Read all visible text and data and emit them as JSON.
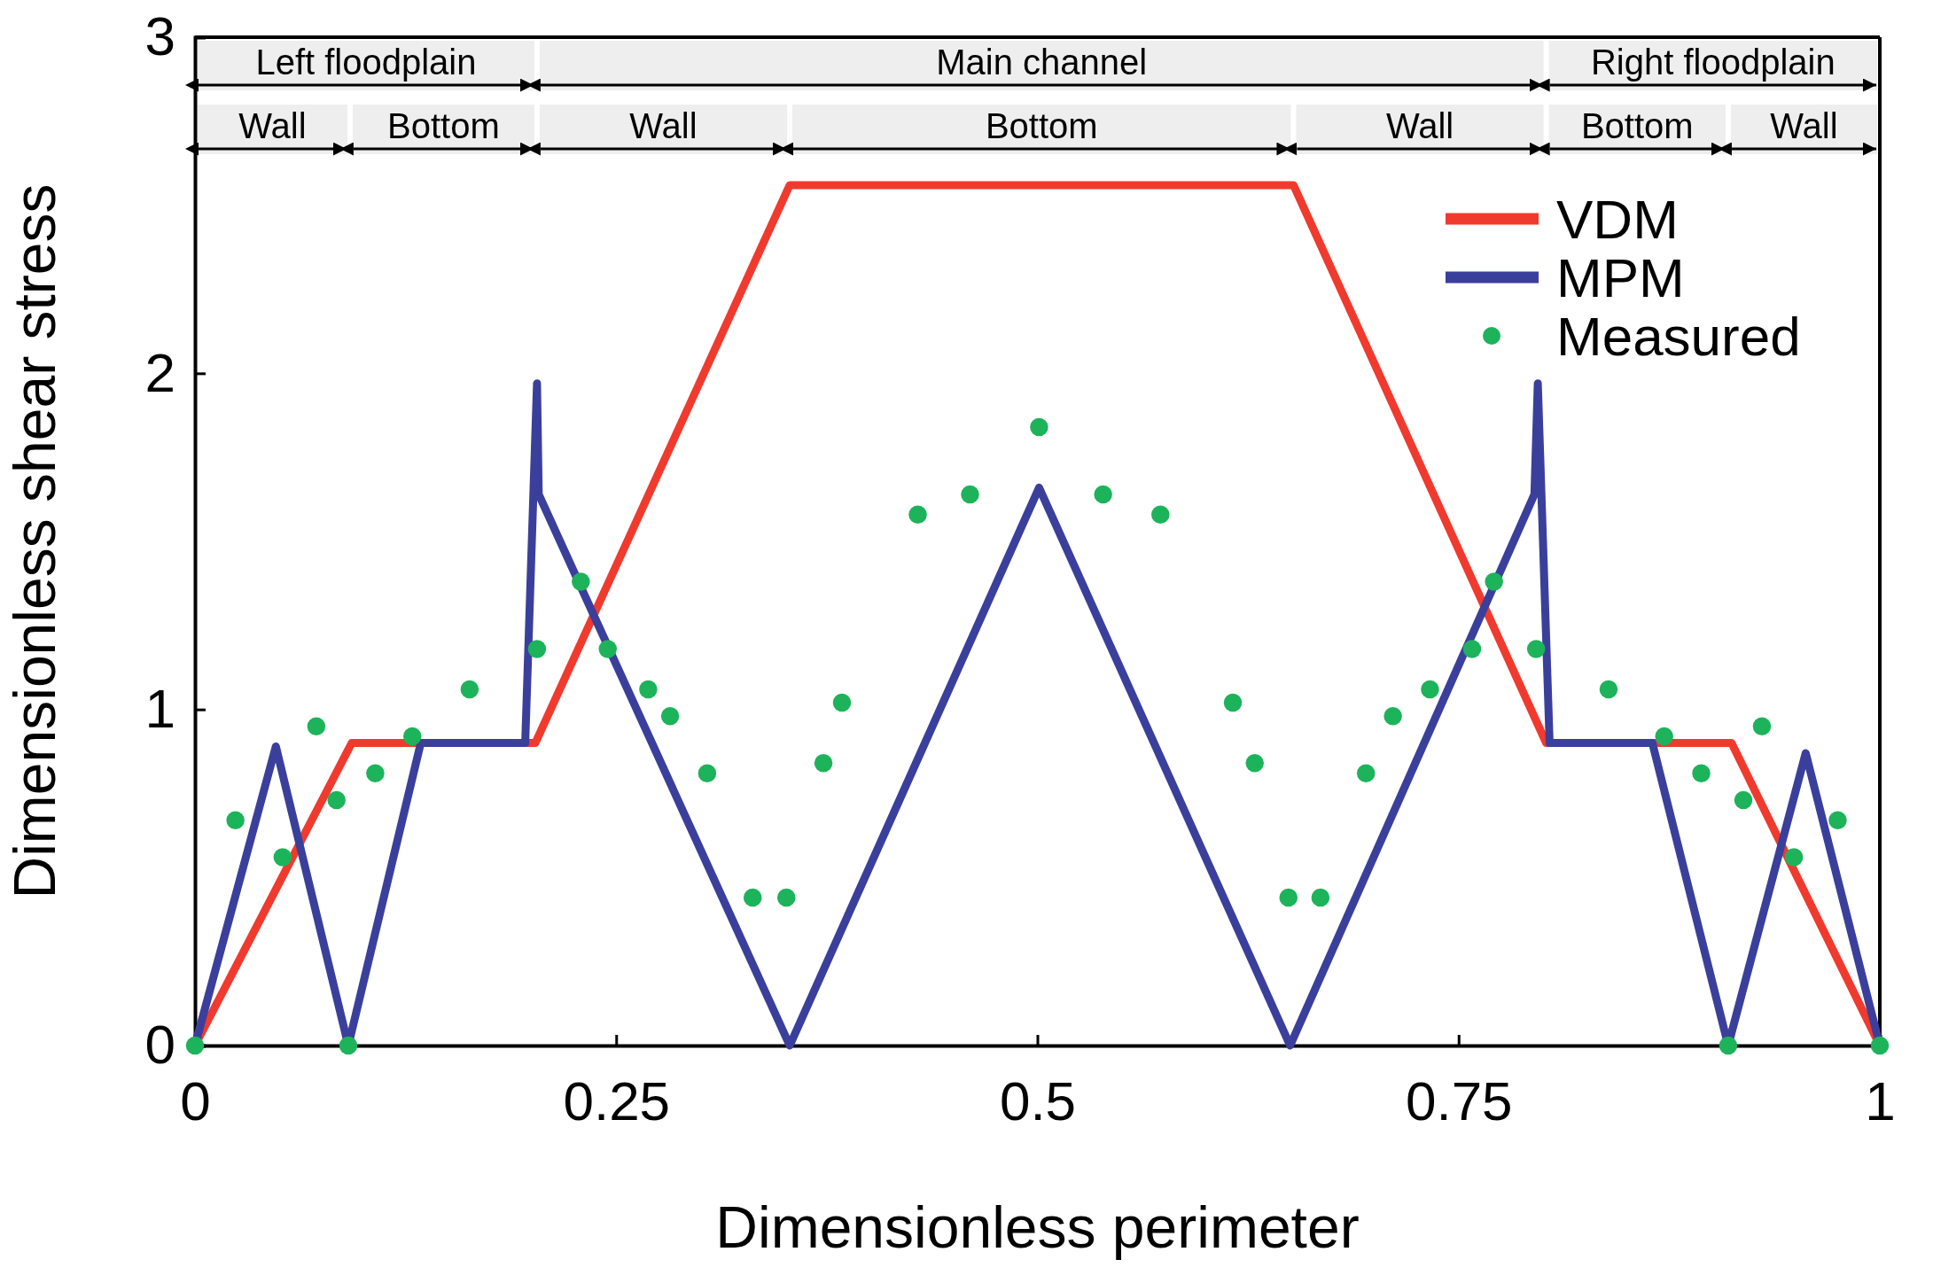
{
  "chart_data": {
    "type": "line",
    "xlabel": "Dimensionless perimeter",
    "ylabel": "Dimensionless shear stress",
    "xlim": [
      0,
      1
    ],
    "ylim": [
      0,
      3
    ],
    "xticks": [
      0,
      0.25,
      0.5,
      0.75,
      1
    ],
    "yticks": [
      0,
      1,
      2,
      3
    ],
    "grid": false,
    "legend": "top right",
    "series": [
      {
        "name": "VDM",
        "color": "#f03a2e",
        "type": "line",
        "marker": "none",
        "x": [
          0,
          0.093,
          0.202,
          0.353,
          0.652,
          0.802,
          0.912,
          1
        ],
        "values": [
          0,
          0.9,
          0.9,
          2.56,
          2.56,
          0.9,
          0.9,
          0
        ]
      },
      {
        "name": "MPM",
        "color": "#3b3f9c",
        "type": "line",
        "marker": "none",
        "x": [
          0,
          0.048,
          0.091,
          0.134,
          0.196,
          0.203,
          0.204,
          0.353,
          0.501,
          0.65,
          0.795,
          0.797,
          0.804,
          0.865,
          0.91,
          0.956,
          1
        ],
        "values": [
          0,
          0.89,
          0,
          0.9,
          0.9,
          1.97,
          1.64,
          0,
          1.66,
          0,
          1.64,
          1.97,
          0.9,
          0.9,
          0,
          0.87,
          0
        ]
      },
      {
        "name": "Measured",
        "color": "#1db35a",
        "type": "scatter",
        "marker": "circle",
        "x": [
          0,
          0.024,
          0.052,
          0.072,
          0.084,
          0.091,
          0.107,
          0.129,
          0.163,
          0.203,
          0.229,
          0.245,
          0.269,
          0.282,
          0.304,
          0.331,
          0.351,
          0.373,
          0.384,
          0.429,
          0.46,
          0.501,
          0.539,
          0.573,
          0.616,
          0.629,
          0.649,
          0.668,
          0.695,
          0.711,
          0.733,
          0.758,
          0.771,
          0.796,
          0.839,
          0.872,
          0.894,
          0.91,
          0.919,
          0.93,
          0.949,
          0.975,
          1
        ],
        "values": [
          0,
          0.67,
          0.56,
          0.95,
          0.73,
          0,
          0.81,
          0.92,
          1.06,
          1.18,
          1.38,
          1.18,
          1.06,
          0.98,
          0.81,
          0.44,
          0.44,
          0.84,
          1.02,
          1.58,
          1.64,
          1.84,
          1.64,
          1.58,
          1.02,
          0.84,
          0.44,
          0.44,
          0.81,
          0.98,
          1.06,
          1.18,
          1.38,
          1.18,
          1.06,
          0.92,
          0.81,
          0,
          0.73,
          0.95,
          0.56,
          0.67,
          0
        ]
      }
    ],
    "bands": [
      {
        "axis": "x",
        "from": 0,
        "to": 0.203,
        "label": "Left floodplain"
      },
      {
        "axis": "x",
        "from": 0.203,
        "to": 0.802,
        "label": "Main channel"
      },
      {
        "axis": "x",
        "from": 0.802,
        "to": 1,
        "label": "Right floodplain"
      },
      {
        "axis": "x",
        "from": 0,
        "to": 0.092,
        "label": "Wall"
      },
      {
        "axis": "x",
        "from": 0.092,
        "to": 0.203,
        "label": "Bottom"
      },
      {
        "axis": "x",
        "from": 0.203,
        "to": 0.353,
        "label": "Wall"
      },
      {
        "axis": "x",
        "from": 0.353,
        "to": 0.652,
        "label": "Bottom"
      },
      {
        "axis": "x",
        "from": 0.652,
        "to": 0.802,
        "label": "Wall"
      },
      {
        "axis": "x",
        "from": 0.802,
        "to": 0.91,
        "label": "Bottom"
      },
      {
        "axis": "x",
        "from": 0.91,
        "to": 1,
        "label": "Wall"
      }
    ]
  }
}
